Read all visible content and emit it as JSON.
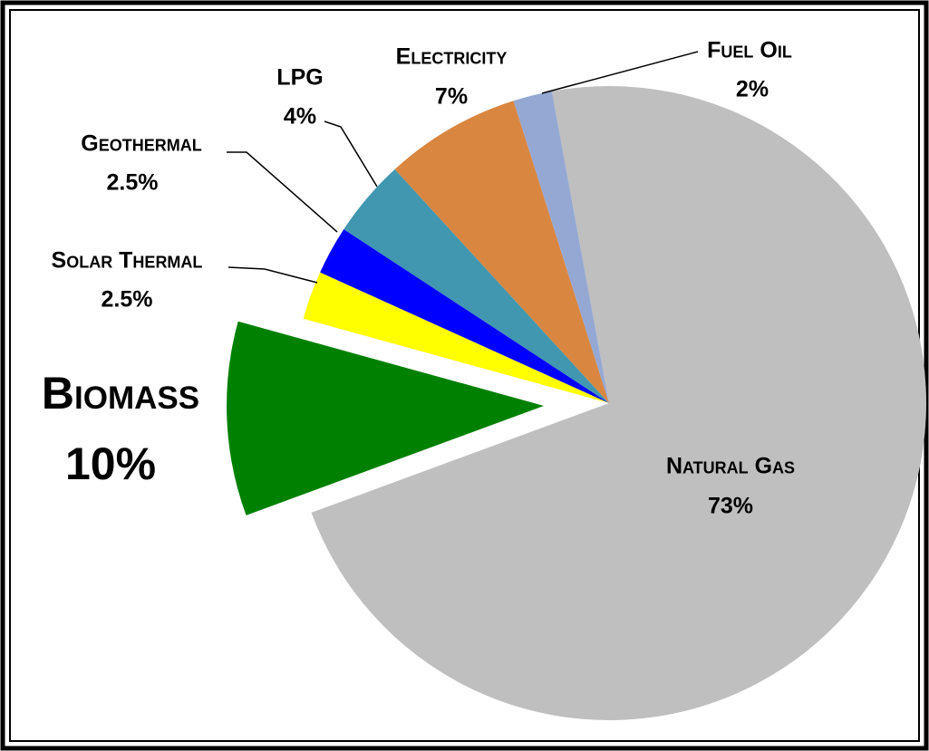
{
  "chart_data": {
    "type": "pie",
    "categories": [
      "Natural Gas",
      "Biomass",
      "Solar Thermal",
      "Geothermal",
      "LPG",
      "Electricity",
      "Fuel Oil"
    ],
    "values": [
      73,
      10,
      2.5,
      2.5,
      4,
      7,
      2
    ],
    "value_labels": [
      "73%",
      "10%",
      "2.5%",
      "2.5%",
      "4%",
      "7%",
      "2%"
    ],
    "colors": [
      "#bfbfbf",
      "#008000",
      "#ffff00",
      "#0000ff",
      "#4197b0",
      "#d98640",
      "#95a8d4"
    ],
    "exploded": [
      "Biomass"
    ]
  }
}
